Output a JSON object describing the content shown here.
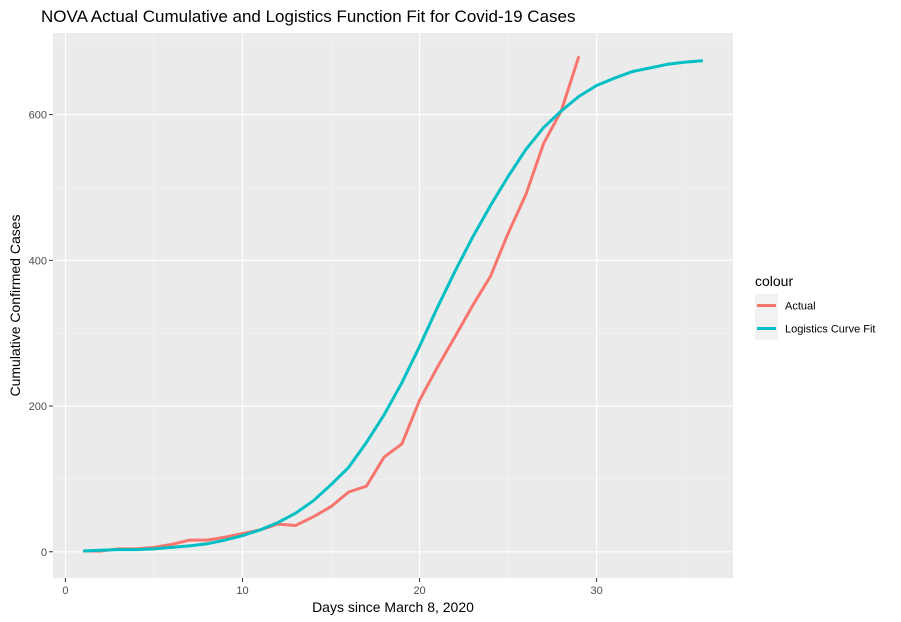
{
  "chart_data": {
    "type": "line",
    "title": "NOVA Actual Cumulative and Logistics Function Fit for Covid-19 Cases",
    "xlabel": "Days since March 8, 2020",
    "ylabel": "Cumulative Confirmed Cases",
    "xlim": [
      -0.7,
      37.7
    ],
    "ylim": [
      -36,
      712
    ],
    "x_ticks": [
      0,
      10,
      20,
      30
    ],
    "y_ticks": [
      0,
      200,
      400,
      600
    ],
    "grid": true,
    "legend": {
      "title": "colour",
      "position": "right"
    },
    "series": [
      {
        "name": "Actual",
        "color": "#F8766D",
        "x": [
          1,
          2,
          3,
          4,
          5,
          6,
          7,
          8,
          9,
          10,
          11,
          12,
          13,
          14,
          15,
          16,
          17,
          18,
          19,
          20,
          21,
          22,
          23,
          24,
          25,
          26,
          27,
          28,
          29
        ],
        "y": [
          1,
          1,
          4,
          4,
          6,
          10,
          16,
          16,
          20,
          25,
          30,
          38,
          36,
          48,
          62,
          82,
          90,
          130,
          148,
          208,
          253,
          295,
          338,
          378,
          437,
          490,
          560,
          605,
          680
        ]
      },
      {
        "name": "Logistics Curve Fit",
        "color": "#00BFC4",
        "x": [
          1,
          2,
          3,
          4,
          5,
          6,
          7,
          8,
          9,
          10,
          11,
          12,
          13,
          14,
          15,
          16,
          17,
          18,
          19,
          20,
          21,
          22,
          23,
          24,
          25,
          26,
          27,
          28,
          29,
          30,
          31,
          32,
          33,
          34,
          35,
          36
        ],
        "y": [
          1,
          2,
          3,
          3,
          4,
          6,
          8,
          11,
          16,
          22,
          30,
          40,
          53,
          70,
          92,
          116,
          150,
          188,
          232,
          282,
          335,
          385,
          432,
          475,
          515,
          552,
          582,
          605,
          625,
          640,
          650,
          659,
          664,
          669,
          672,
          674
        ]
      }
    ]
  }
}
